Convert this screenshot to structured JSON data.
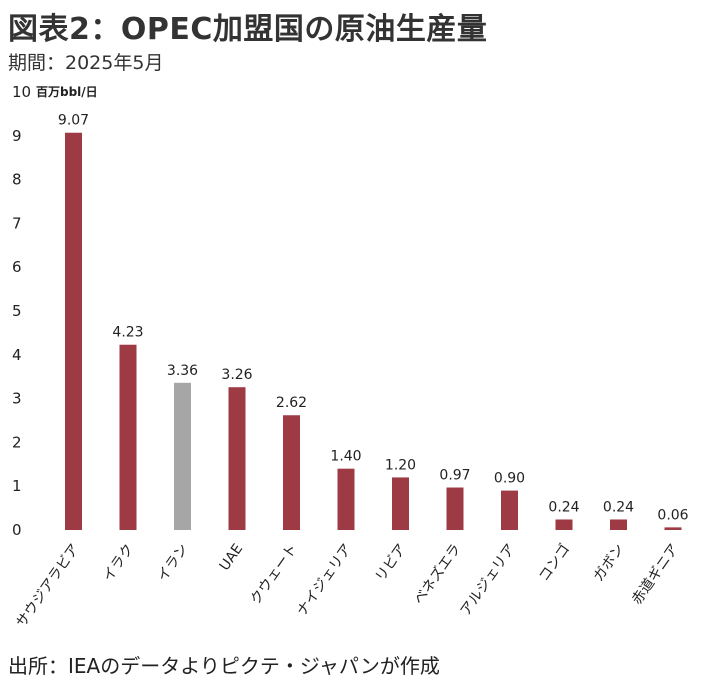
{
  "header": {
    "title": "図表2：OPEC加盟国の原油生産量",
    "subtitle": "期間：2025年5月"
  },
  "footer": {
    "source": "出所：IEAのデータよりピクテ・ジャパンが作成"
  },
  "chart_data": {
    "type": "bar",
    "title": "図表2：OPEC加盟国の原油生産量",
    "subtitle": "期間：2025年5月",
    "ylabel": "百万bbl/日",
    "ylim": [
      0,
      10
    ],
    "yticks": [
      0,
      1,
      2,
      3,
      4,
      5,
      6,
      7,
      8,
      9,
      10
    ],
    "grid": false,
    "legend": "none",
    "categories": [
      "サウジアラビア",
      "イラク",
      "イラン",
      "UAE",
      "クウェート",
      "ナイジェリア",
      "リビア",
      "ベネズエラ",
      "アルジェリア",
      "コンゴ",
      "ガボン",
      "赤道ギニア"
    ],
    "values": [
      9.07,
      4.23,
      3.36,
      3.26,
      2.62,
      1.4,
      1.2,
      0.97,
      0.9,
      0.24,
      0.24,
      0.06
    ],
    "data_labels": [
      "9.07",
      "4.23",
      "3.36",
      "3.26",
      "2.62",
      "1.40",
      "1.20",
      "0.97",
      "0.90",
      "0.24",
      "0.24",
      "0.06"
    ],
    "colors": {
      "default": "#9e3a44",
      "highlight": "#a6a6a6",
      "highlight_category": "イラン"
    }
  }
}
